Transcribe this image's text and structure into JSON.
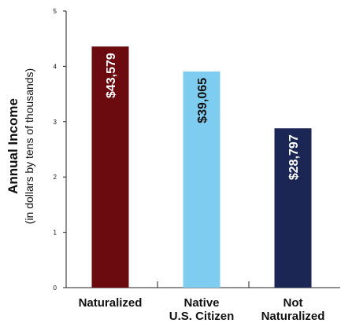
{
  "chart_data": {
    "type": "bar",
    "ylabel": "Annual Income",
    "ylabel_sub": "(in dollars by tens of thousands)",
    "ylim": [
      0,
      5
    ],
    "yticks": [
      "0",
      "1",
      "2",
      "3",
      "4",
      "5"
    ],
    "grid": false,
    "categories": [
      {
        "label_lines": [
          "Naturalized"
        ]
      },
      {
        "label_lines": [
          "Native",
          "U.S. Citizen"
        ]
      },
      {
        "label_lines": [
          "Not",
          "Naturalized"
        ]
      }
    ],
    "values": [
      4.3579,
      3.9065,
      2.8797
    ],
    "data_labels": [
      "$43,579",
      "$39,065",
      "$28,797"
    ],
    "colors": [
      "#6b0a0f",
      "#7ecdf0",
      "#1b2655"
    ],
    "label_colors": [
      "#ffffff",
      "#111111",
      "#ffffff"
    ]
  }
}
